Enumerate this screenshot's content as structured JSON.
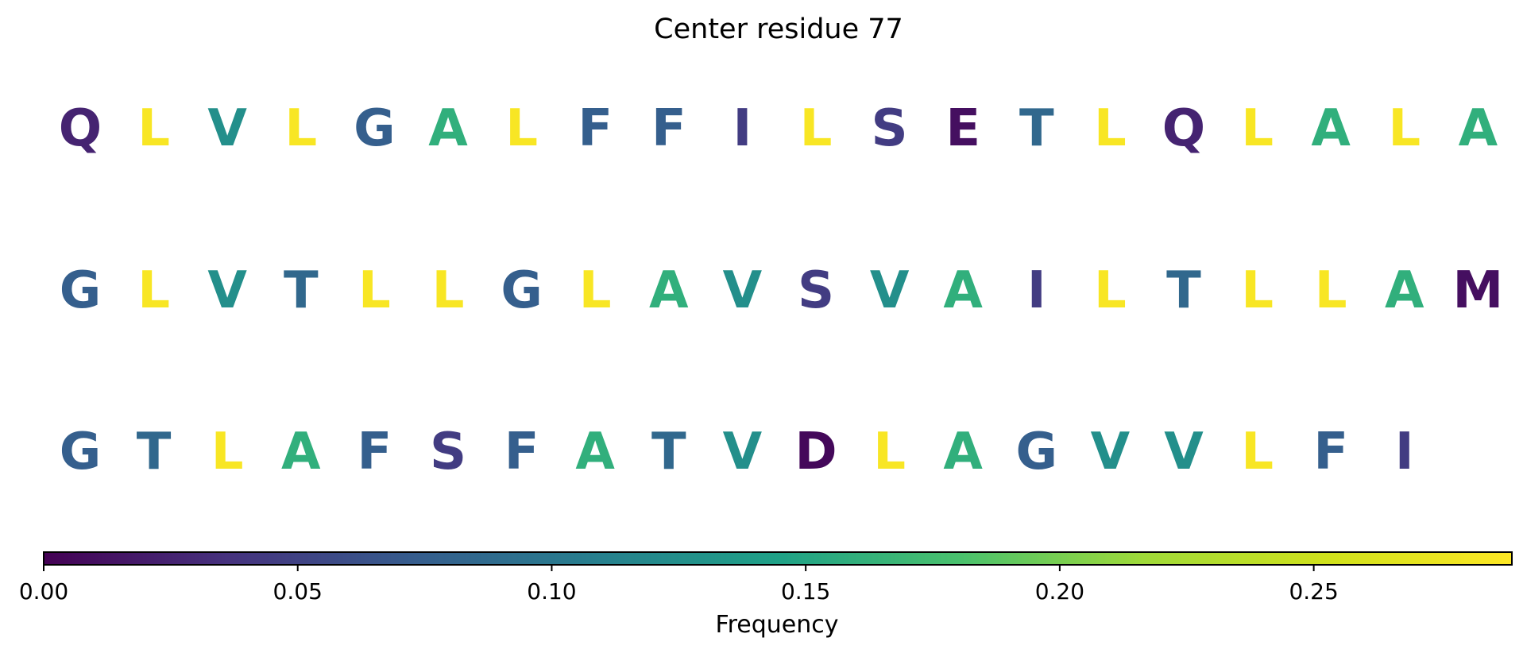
{
  "chart_data": {
    "type": "table",
    "title": "Center residue 77",
    "rows": [
      [
        {
          "residue": "Q",
          "frequency": 0.025
        },
        {
          "residue": "L",
          "frequency": 0.285
        },
        {
          "residue": "V",
          "frequency": 0.125
        },
        {
          "residue": "L",
          "frequency": 0.285
        },
        {
          "residue": "G",
          "frequency": 0.075
        },
        {
          "residue": "A",
          "frequency": 0.16
        },
        {
          "residue": "L",
          "frequency": 0.285
        },
        {
          "residue": "F",
          "frequency": 0.075
        },
        {
          "residue": "F",
          "frequency": 0.075
        },
        {
          "residue": "I",
          "frequency": 0.045
        },
        {
          "residue": "L",
          "frequency": 0.285
        },
        {
          "residue": "S",
          "frequency": 0.045
        },
        {
          "residue": "E",
          "frequency": 0.01
        },
        {
          "residue": "T",
          "frequency": 0.085
        },
        {
          "residue": "L",
          "frequency": 0.285
        },
        {
          "residue": "Q",
          "frequency": 0.025
        },
        {
          "residue": "L",
          "frequency": 0.285
        },
        {
          "residue": "A",
          "frequency": 0.16
        },
        {
          "residue": "L",
          "frequency": 0.285
        },
        {
          "residue": "A",
          "frequency": 0.16
        }
      ],
      [
        {
          "residue": "G",
          "frequency": 0.075
        },
        {
          "residue": "L",
          "frequency": 0.285
        },
        {
          "residue": "V",
          "frequency": 0.125
        },
        {
          "residue": "T",
          "frequency": 0.085
        },
        {
          "residue": "L",
          "frequency": 0.285
        },
        {
          "residue": "L",
          "frequency": 0.285
        },
        {
          "residue": "G",
          "frequency": 0.075
        },
        {
          "residue": "L",
          "frequency": 0.285
        },
        {
          "residue": "A",
          "frequency": 0.16
        },
        {
          "residue": "V",
          "frequency": 0.125
        },
        {
          "residue": "S",
          "frequency": 0.045
        },
        {
          "residue": "V",
          "frequency": 0.125
        },
        {
          "residue": "A",
          "frequency": 0.16
        },
        {
          "residue": "I",
          "frequency": 0.045
        },
        {
          "residue": "L",
          "frequency": 0.285
        },
        {
          "residue": "T",
          "frequency": 0.085
        },
        {
          "residue": "L",
          "frequency": 0.285
        },
        {
          "residue": "L",
          "frequency": 0.285
        },
        {
          "residue": "A",
          "frequency": 0.16
        },
        {
          "residue": "M",
          "frequency": 0.01
        }
      ],
      [
        {
          "residue": "G",
          "frequency": 0.075
        },
        {
          "residue": "T",
          "frequency": 0.085
        },
        {
          "residue": "L",
          "frequency": 0.285
        },
        {
          "residue": "A",
          "frequency": 0.16
        },
        {
          "residue": "F",
          "frequency": 0.075
        },
        {
          "residue": "S",
          "frequency": 0.045
        },
        {
          "residue": "F",
          "frequency": 0.075
        },
        {
          "residue": "A",
          "frequency": 0.16
        },
        {
          "residue": "T",
          "frequency": 0.085
        },
        {
          "residue": "V",
          "frequency": 0.125
        },
        {
          "residue": "D",
          "frequency": 0.005
        },
        {
          "residue": "L",
          "frequency": 0.285
        },
        {
          "residue": "A",
          "frequency": 0.16
        },
        {
          "residue": "G",
          "frequency": 0.075
        },
        {
          "residue": "V",
          "frequency": 0.125
        },
        {
          "residue": "V",
          "frequency": 0.125
        },
        {
          "residue": "L",
          "frequency": 0.285
        },
        {
          "residue": "F",
          "frequency": 0.075
        },
        {
          "residue": "I",
          "frequency": 0.045
        }
      ]
    ],
    "colorbar": {
      "label": "Frequency",
      "colormap": "viridis",
      "range": [
        0.0,
        0.289
      ],
      "ticks": [
        0.0,
        0.05,
        0.1,
        0.15,
        0.2,
        0.25
      ],
      "tick_labels": [
        "0.00",
        "0.05",
        "0.10",
        "0.15",
        "0.20",
        "0.25"
      ],
      "orientation": "horizontal",
      "position": "bottom"
    }
  }
}
